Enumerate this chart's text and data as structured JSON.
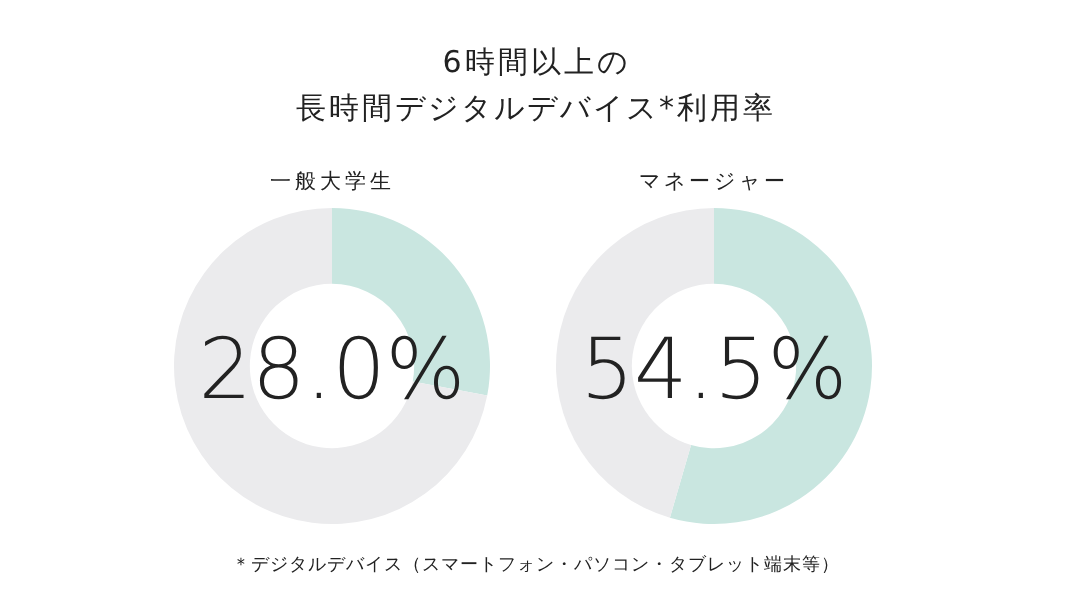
{
  "chart_data": [
    {
      "type": "other",
      "title": "6時間以上の",
      "subtitle": "長時間デジタルデバイス*利用率",
      "annotations": [
        "＊デジタルデバイス（スマートフォン・パソコン・タブレット端末等）"
      ]
    },
    {
      "type": "donut",
      "title": "一般大学生",
      "categories": [
        null,
        null
      ],
      "values": [
        28.0,
        72.0
      ],
      "colors": [
        "#c9e6e0",
        "#ebebed"
      ],
      "annotations": [
        "28.0%"
      ]
    },
    {
      "type": "donut",
      "title": "マネージャー",
      "categories": [
        null,
        null
      ],
      "values": [
        54.5,
        45.5
      ],
      "colors": [
        "#c9e6e0",
        "#ebebed"
      ],
      "annotations": [
        "54.5%"
      ]
    }
  ]
}
